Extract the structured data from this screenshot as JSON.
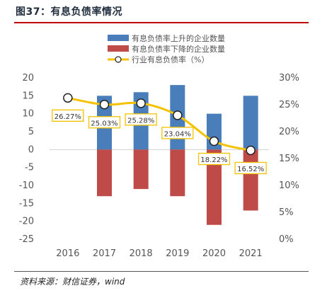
{
  "figure_title": "图37：有息负债率情况",
  "source_note": "资料来源：财信证券，wind",
  "chart_data": {
    "type": "bar",
    "categories": [
      "2016",
      "2017",
      "2018",
      "2019",
      "2020",
      "2021"
    ],
    "series": [
      {
        "name": "有息负债率上升的企业数量",
        "axis": "left",
        "kind": "bar",
        "color": "#4a7ebb",
        "values": [
          0,
          15,
          16,
          18,
          10,
          15
        ]
      },
      {
        "name": "有息负债率下降的企业数量",
        "axis": "left",
        "kind": "bar",
        "color": "#be4b48",
        "values": [
          0,
          -13,
          -11,
          -13,
          -21,
          -17
        ]
      },
      {
        "name": "行业有息负债率（%）",
        "axis": "right",
        "kind": "line",
        "color": "#f5c200",
        "values": [
          26.27,
          25.03,
          25.28,
          23.04,
          18.22,
          16.52
        ],
        "data_labels": [
          "26.27%",
          "25.03%",
          "25.28%",
          "23.04%",
          "18.22%",
          "16.52%"
        ]
      }
    ],
    "y_left": {
      "min": -25,
      "max": 20,
      "step": 5,
      "tick_labels": [
        "-25",
        "-20",
        "-15",
        "-10",
        "-5",
        "0",
        "5",
        "10",
        "15",
        "20"
      ]
    },
    "y_right": {
      "min": 0,
      "max": 30,
      "step": 5,
      "tick_labels": [
        "0%",
        "5%",
        "10%",
        "15%",
        "20%",
        "25%",
        "30%"
      ]
    },
    "grid": false,
    "legend_position": "top-center"
  }
}
